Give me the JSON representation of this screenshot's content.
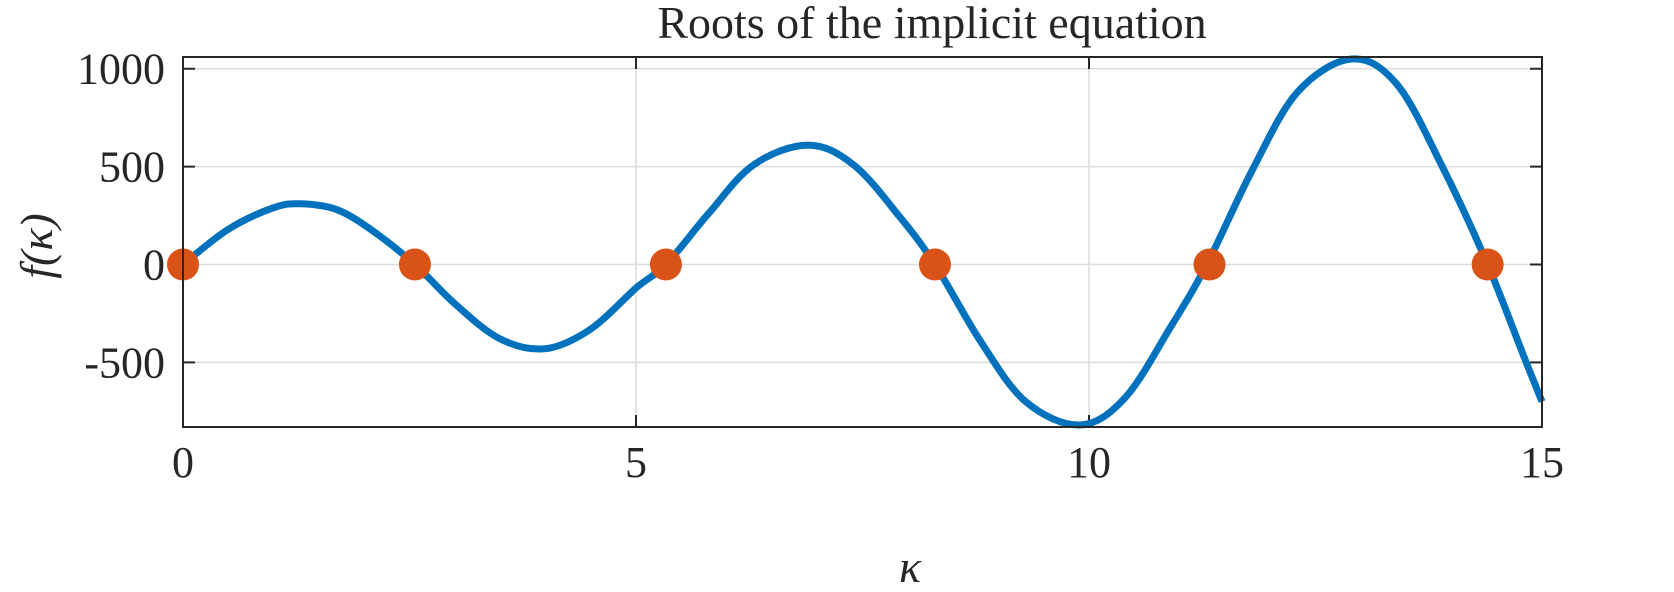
{
  "chart_data": {
    "type": "line",
    "title": "Roots of the implicit equation",
    "xlabel": "κ",
    "ylabel": "f(κ)",
    "xlim": [
      0,
      15
    ],
    "ylim": [
      -830,
      1060
    ],
    "x_ticks": [
      0,
      5,
      10,
      15
    ],
    "x_tick_labels": [
      "0",
      "5",
      "10",
      "15"
    ],
    "y_ticks": [
      -500,
      0,
      500,
      1000
    ],
    "y_tick_labels": [
      "-500",
      "0",
      "500",
      "1000"
    ],
    "grid": true,
    "colors": {
      "curve": "#0072BD",
      "roots": "#D95319"
    },
    "series": [
      {
        "kind": "curve",
        "x": [
          0,
          0.5,
          1.0,
          1.3,
          1.7,
          2.1,
          2.56,
          3.0,
          3.5,
          4.0,
          4.5,
          5.0,
          5.33,
          5.8,
          6.3,
          6.9,
          7.4,
          7.9,
          8.3,
          8.8,
          9.3,
          9.9,
          10.4,
          10.9,
          11.3,
          11.8,
          12.3,
          12.9,
          13.4,
          13.9,
          14.4,
          14.8,
          15.0
        ],
        "y": [
          0,
          180,
          290,
          310,
          280,
          170,
          0,
          -200,
          -380,
          -430,
          -330,
          -120,
          0,
          260,
          510,
          610,
          510,
          250,
          0,
          -390,
          -700,
          -820,
          -680,
          -320,
          0,
          480,
          880,
          1050,
          920,
          500,
          0,
          -470,
          -700
        ]
      },
      {
        "kind": "roots",
        "x": [
          0,
          2.56,
          5.33,
          8.3,
          11.33,
          14.4
        ],
        "y": [
          0,
          0,
          0,
          0,
          0,
          0
        ]
      }
    ]
  }
}
